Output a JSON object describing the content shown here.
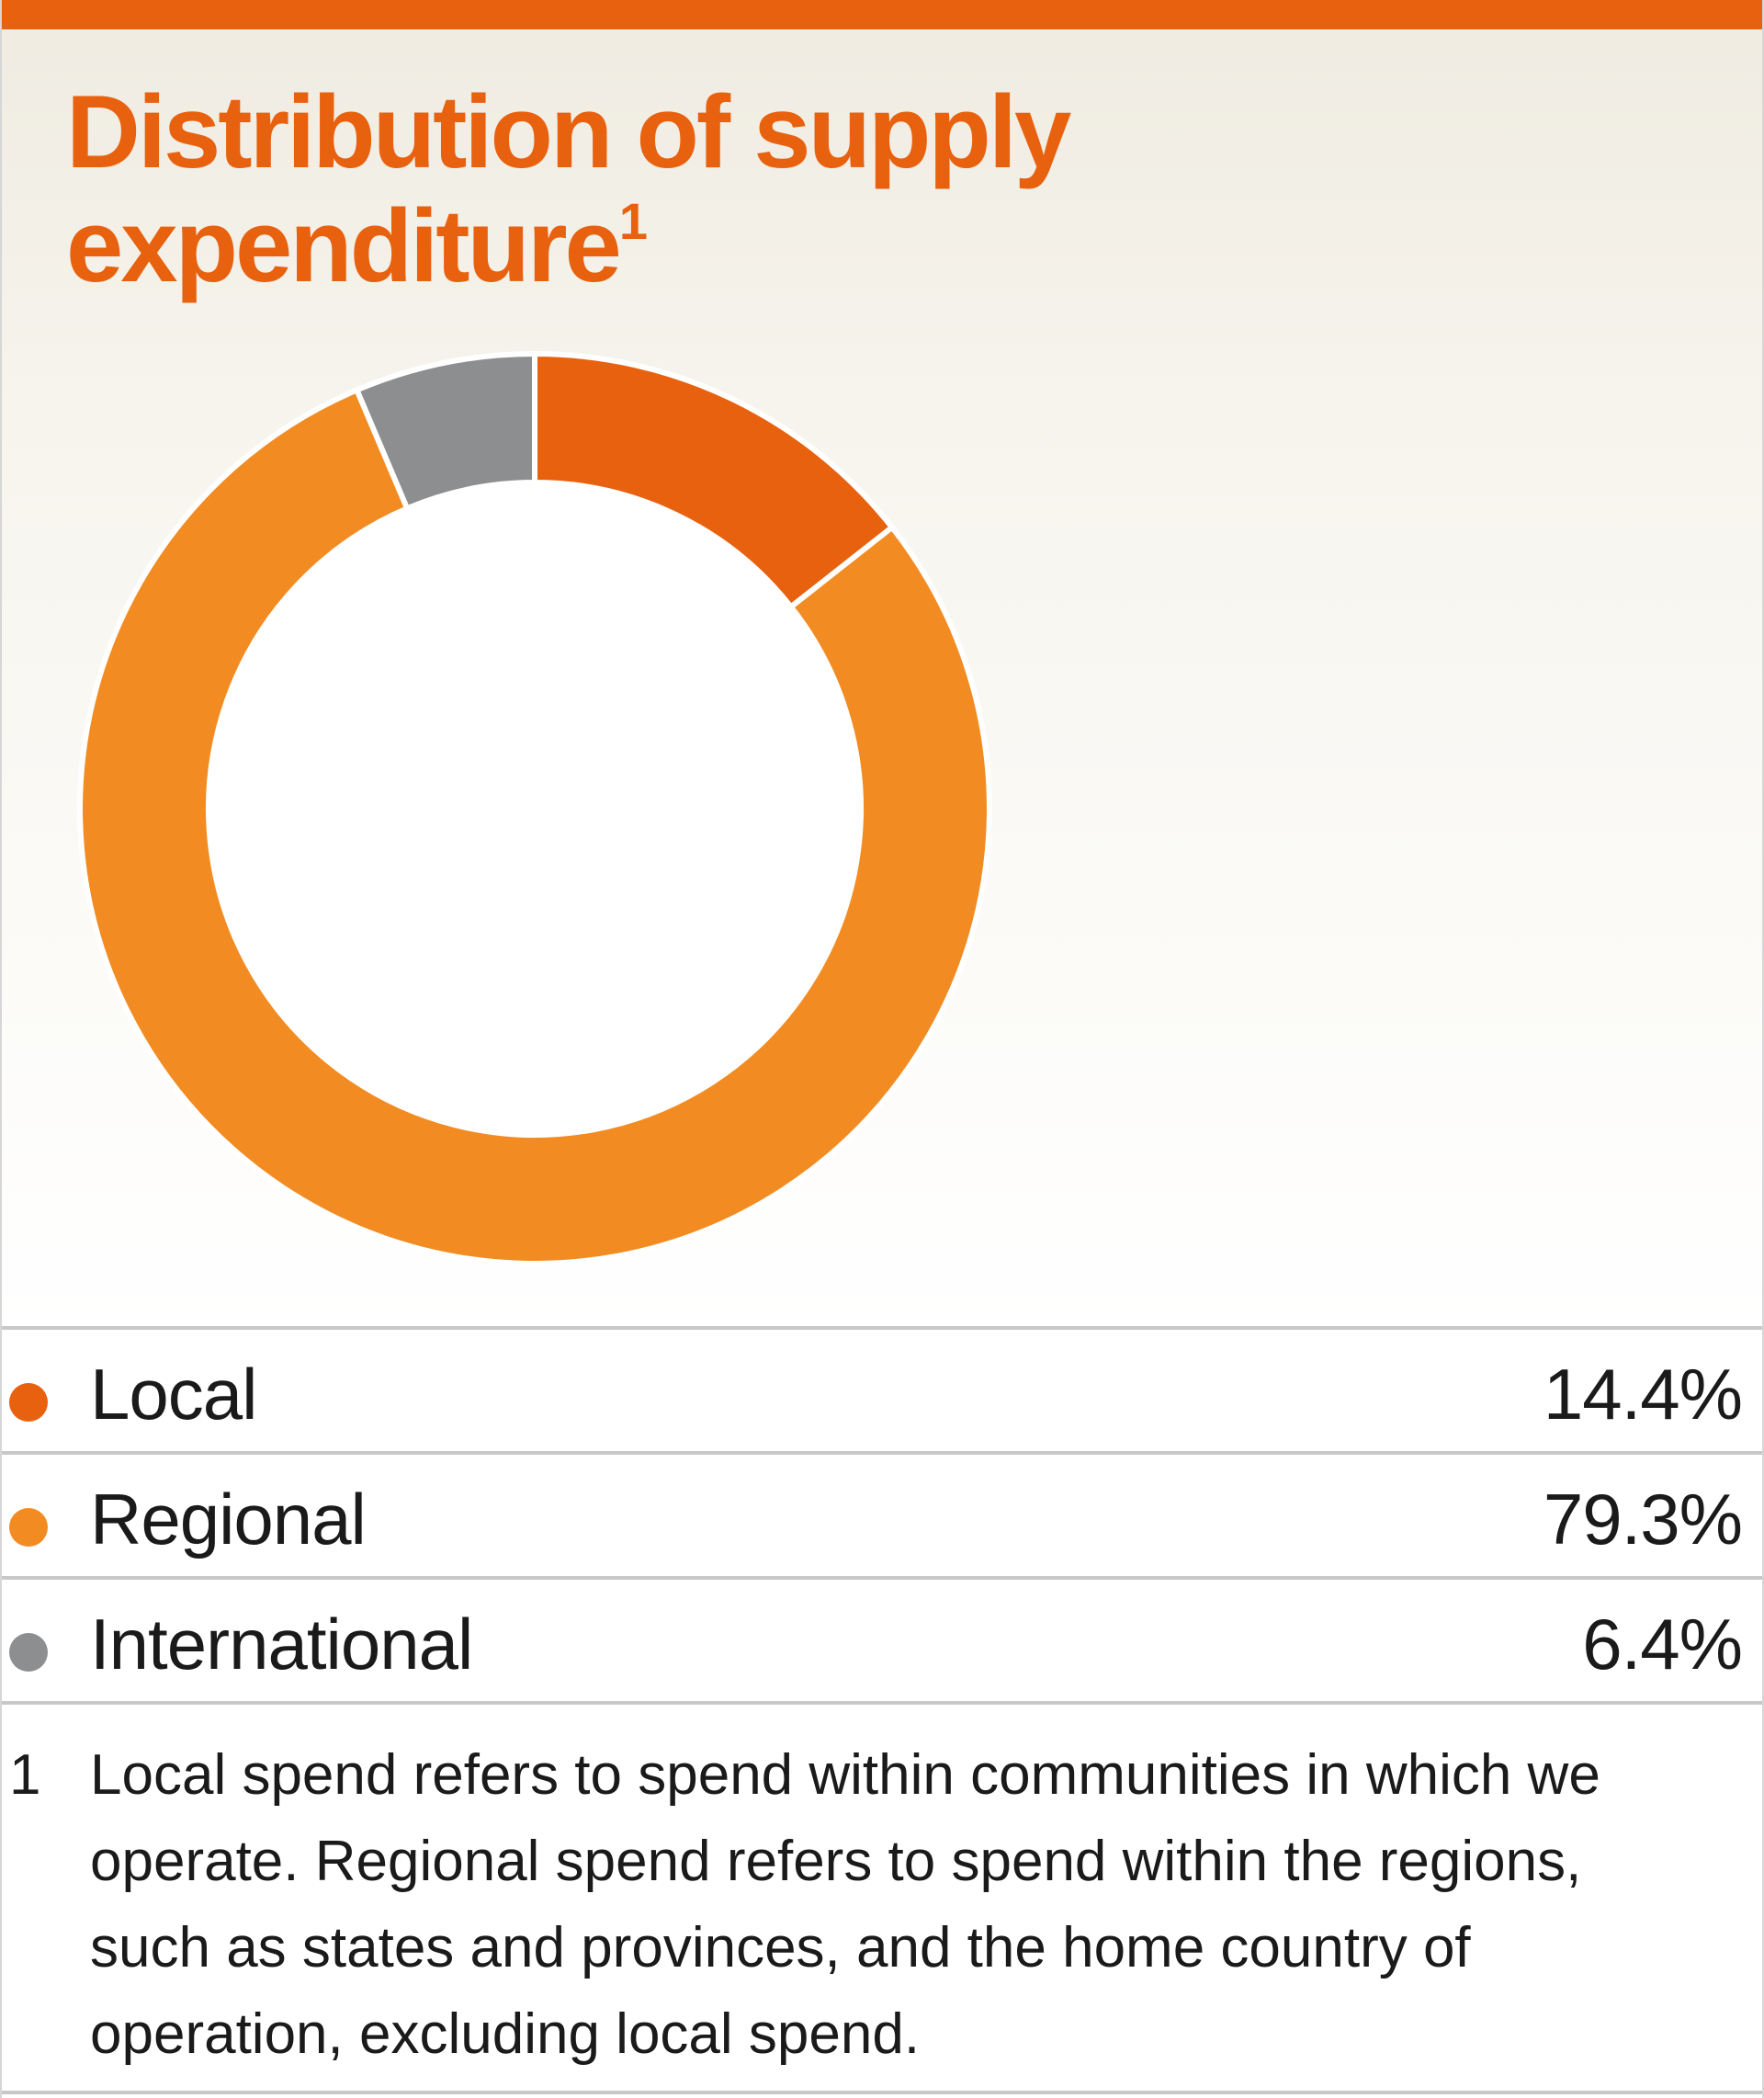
{
  "colors": {
    "accent": "#e8610f",
    "local": "#e8610f",
    "regional": "#f28c22",
    "international": "#8c8e90"
  },
  "chart_data": {
    "type": "pie",
    "title": "Distribution of supply expenditure",
    "title_footnote_marker": "1",
    "donut": true,
    "categories": [
      "Local",
      "Regional",
      "International"
    ],
    "values": [
      14.4,
      79.3,
      6.4
    ],
    "value_labels": [
      "14.4%",
      "79.3%",
      "6.4%"
    ],
    "unit": "%",
    "legend_placement": "bottom"
  },
  "footnote": {
    "marker": "1",
    "text": "Local spend refers to spend within communities in which we operate. Regional spend refers to spend within the regions, such as states and provinces, and the home country of operation, excluding local spend."
  }
}
